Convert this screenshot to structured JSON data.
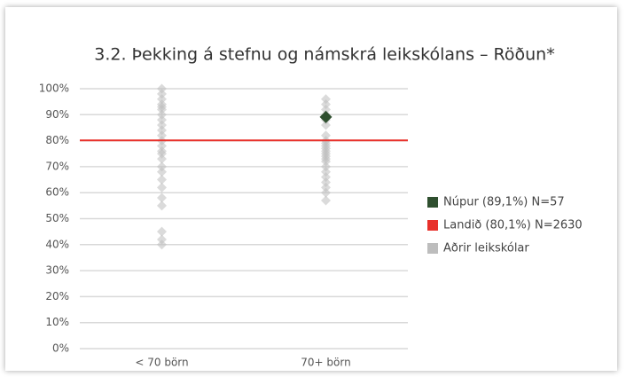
{
  "chart_data": {
    "type": "scatter",
    "title": "3.2. Þekking á stefnu og námskrá leikskólans – Röðun*",
    "categories": [
      "< 70 börn",
      "70+ börn"
    ],
    "ylim": [
      0,
      100
    ],
    "yticks": [
      {
        "value": 0,
        "label": "0%"
      },
      {
        "value": 10,
        "label": "10%"
      },
      {
        "value": 20,
        "label": "20%"
      },
      {
        "value": 30,
        "label": "30%"
      },
      {
        "value": 40,
        "label": "40%"
      },
      {
        "value": 50,
        "label": "50%"
      },
      {
        "value": 60,
        "label": "60%"
      },
      {
        "value": 70,
        "label": "70%"
      },
      {
        "value": 80,
        "label": "80%"
      },
      {
        "value": 90,
        "label": "90%"
      },
      {
        "value": 100,
        "label": "100%"
      }
    ],
    "grid": true,
    "legend": "right",
    "series": [
      {
        "name": "Núpur (89,1%) N=57",
        "color": "#2f4f2f",
        "x": [
          "70+ börn"
        ],
        "values": [
          89.1
        ]
      },
      {
        "name": "Landið (80,1%) N=2630",
        "color": "#e8302a",
        "style": "line",
        "values": [
          80.1
        ]
      },
      {
        "name": "Aðrir leikskólar",
        "color": "#bdbdbd",
        "x": [
          "< 70 börn",
          "< 70 börn",
          "< 70 börn",
          "< 70 börn",
          "< 70 börn",
          "< 70 börn",
          "< 70 börn",
          "< 70 börn",
          "< 70 börn",
          "< 70 börn",
          "< 70 börn",
          "< 70 börn",
          "< 70 börn",
          "< 70 börn",
          "< 70 börn",
          "< 70 börn",
          "< 70 börn",
          "< 70 börn",
          "< 70 börn",
          "< 70 börn",
          "< 70 börn",
          "< 70 börn",
          "< 70 börn",
          "< 70 börn",
          "< 70 börn",
          "70+ börn",
          "70+ börn",
          "70+ börn",
          "70+ börn",
          "70+ börn",
          "70+ börn",
          "70+ börn",
          "70+ börn",
          "70+ börn",
          "70+ börn",
          "70+ börn",
          "70+ börn",
          "70+ börn",
          "70+ börn",
          "70+ börn",
          "70+ börn",
          "70+ börn",
          "70+ börn",
          "70+ börn",
          "70+ börn",
          "70+ börn",
          "70+ börn",
          "70+ börn"
        ],
        "values": [
          100,
          98,
          96,
          94,
          93,
          92,
          90,
          88,
          86,
          84,
          82,
          80,
          78,
          76,
          75,
          73,
          70,
          68,
          65,
          62,
          58,
          55,
          45,
          42,
          40,
          96,
          94,
          92,
          90,
          88,
          86,
          82,
          80,
          79,
          78,
          77,
          76,
          75,
          74,
          73,
          72,
          70,
          68,
          66,
          64,
          62,
          60,
          57
        ]
      }
    ]
  }
}
